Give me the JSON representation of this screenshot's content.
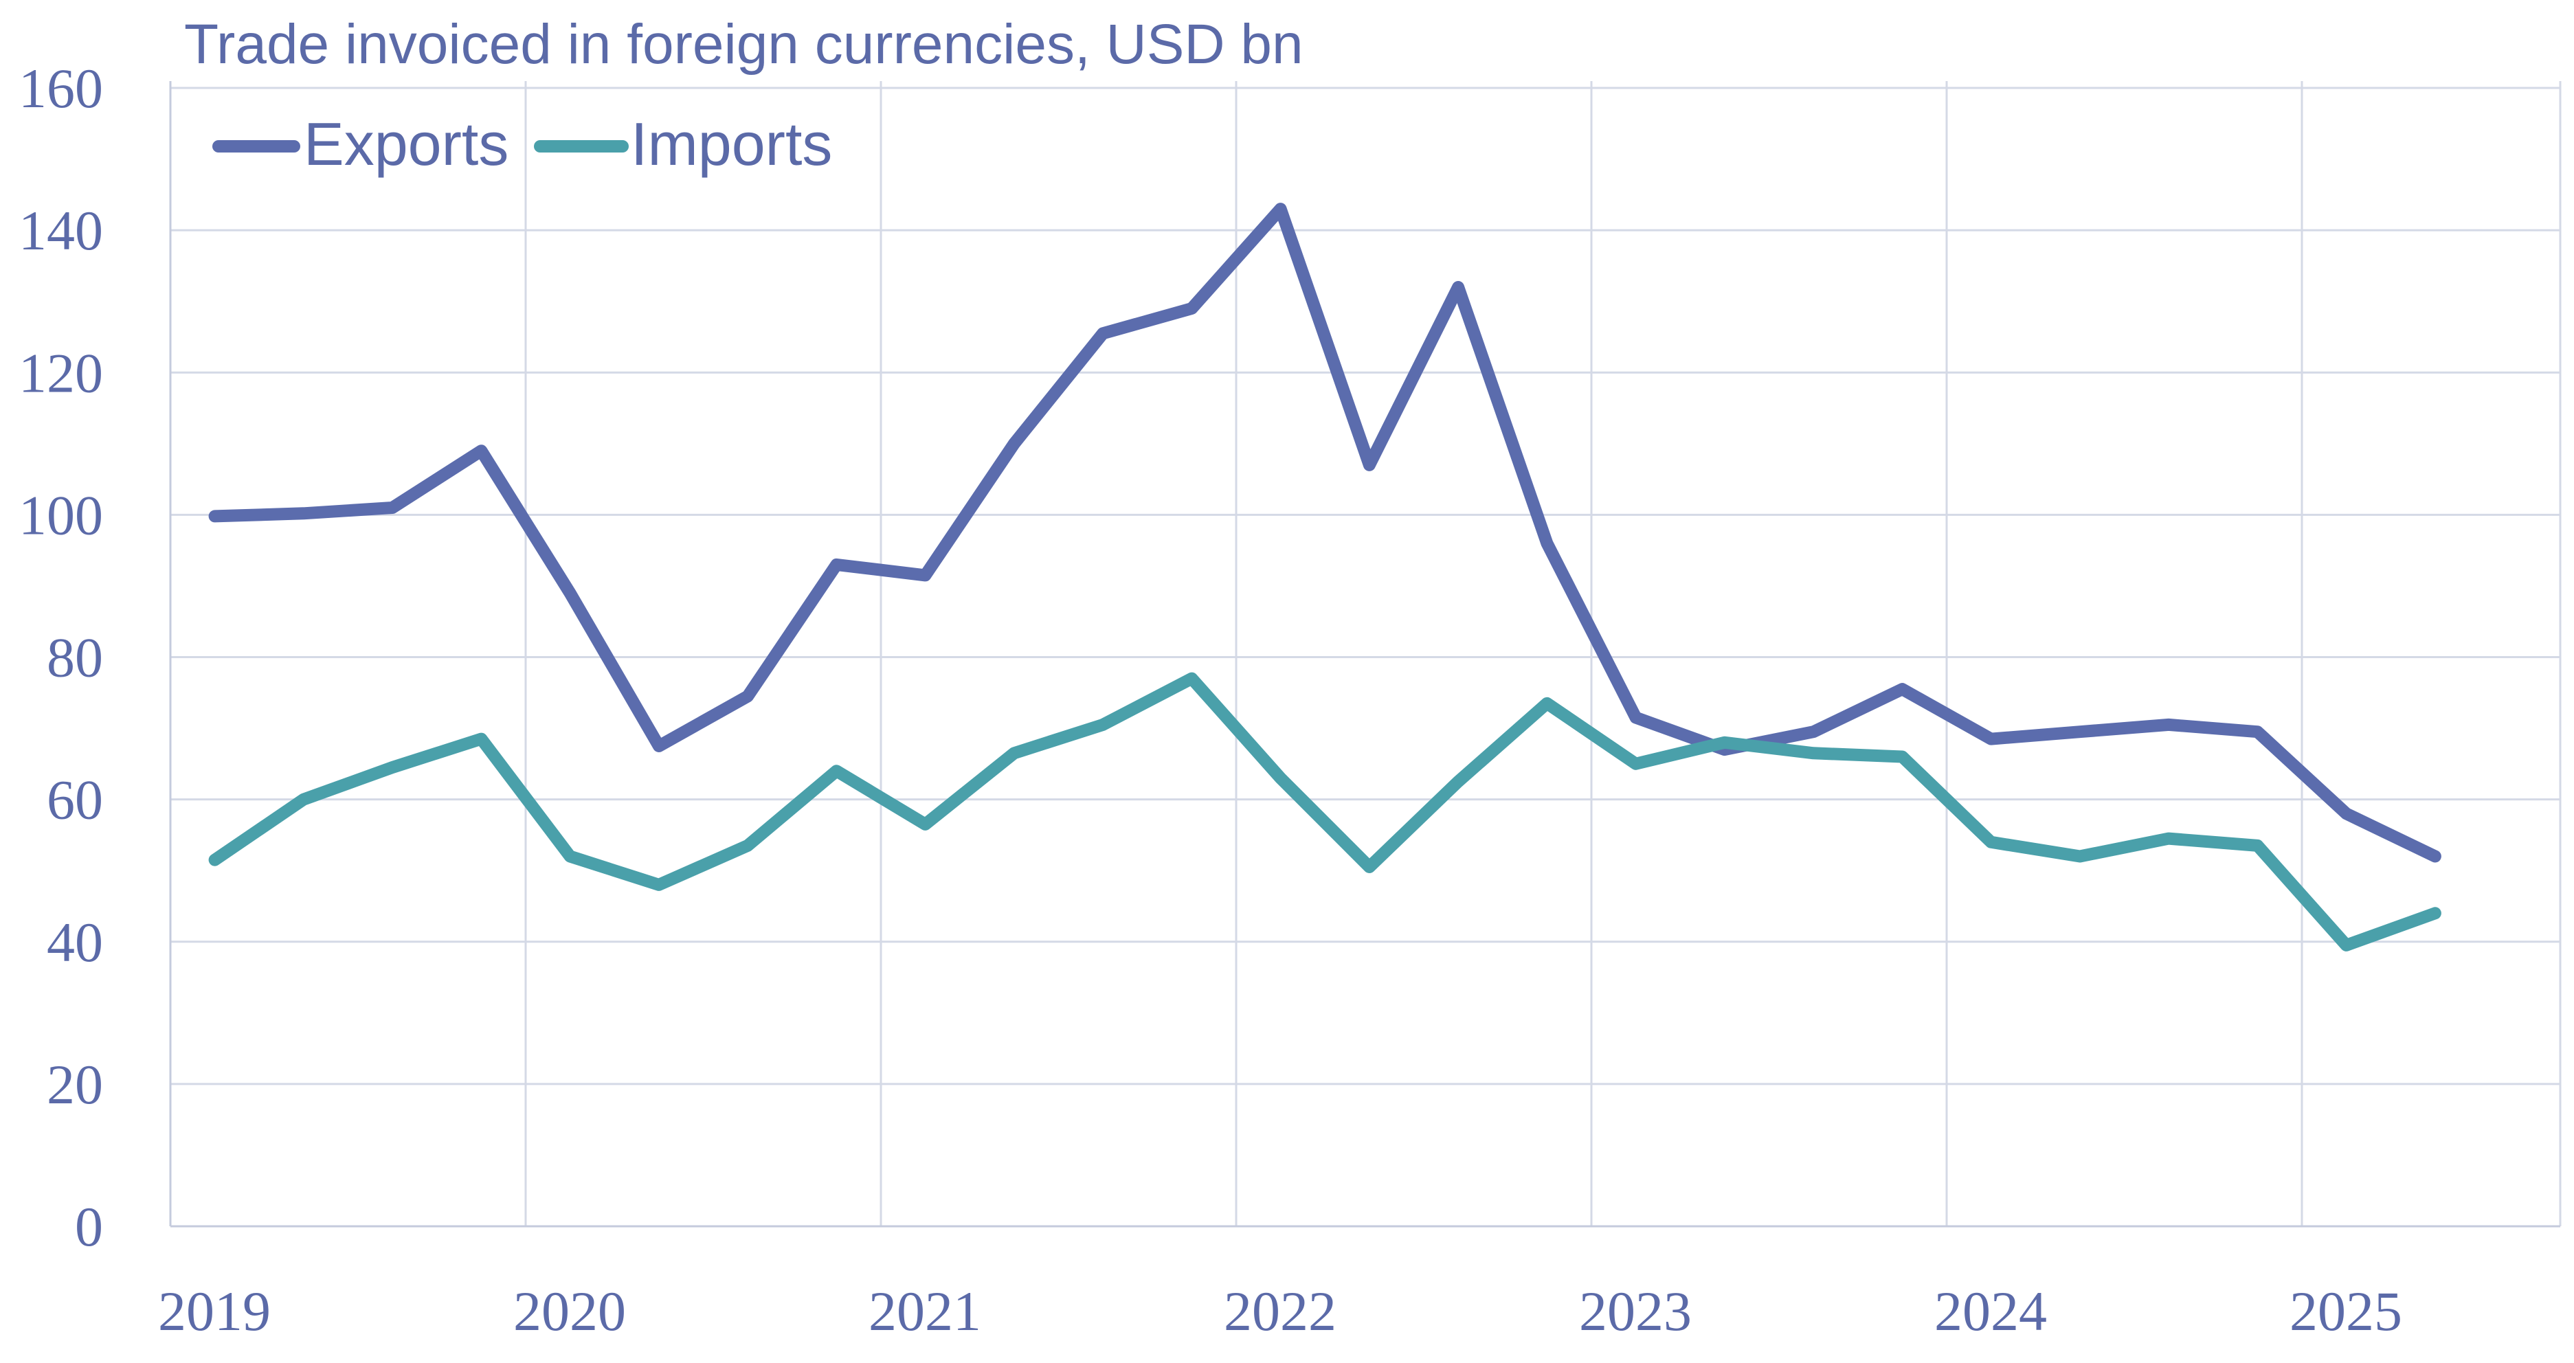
{
  "chart_data": {
    "type": "line",
    "title": "Trade invoiced in foreign currencies, USD bn",
    "xlabel": "",
    "ylabel": "",
    "ylim": [
      0,
      160
    ],
    "y_ticks": [
      "0",
      "20",
      "40",
      "60",
      "80",
      "100",
      "120",
      "140",
      "160"
    ],
    "x_ticks": [
      "2019",
      "2020",
      "2021",
      "2022",
      "2023",
      "2024",
      "2025"
    ],
    "grid": true,
    "legend": "top-left",
    "x": [
      "2019Q1",
      "2019Q2",
      "2019Q3",
      "2019Q4",
      "2020Q1",
      "2020Q2",
      "2020Q3",
      "2020Q4",
      "2021Q1",
      "2021Q2",
      "2021Q3",
      "2021Q4",
      "2022Q1",
      "2022Q2",
      "2022Q3",
      "2022Q4",
      "2023Q1",
      "2023Q2",
      "2023Q3",
      "2023Q4",
      "2024Q1",
      "2024Q2",
      "2024Q3",
      "2024Q4",
      "2025Q1",
      "2025Q2"
    ],
    "series": [
      {
        "name": "Exports",
        "color": "#5b6cad",
        "values": [
          99.8,
          100.2,
          101,
          109,
          89,
          67.5,
          74.5,
          93,
          91.5,
          110,
          125.5,
          129,
          143,
          107,
          132,
          96,
          71.5,
          67,
          69.5,
          75.5,
          68.5,
          69.5,
          70.5,
          69.5,
          58,
          52
        ]
      },
      {
        "name": "Imports",
        "color": "#4aa0aa",
        "values": [
          51.5,
          60,
          64.5,
          68.5,
          52,
          48,
          53.5,
          64,
          56.5,
          66.5,
          70.5,
          77,
          63,
          50.5,
          62.5,
          73.5,
          65,
          68,
          66.5,
          66,
          54,
          52,
          54.5,
          53.5,
          39.5,
          44
        ]
      }
    ]
  }
}
